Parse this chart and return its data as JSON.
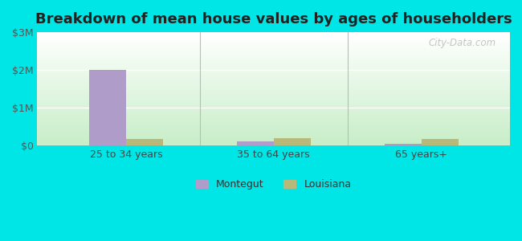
{
  "title": "Breakdown of mean house values by ages of householders",
  "categories": [
    "25 to 34 years",
    "35 to 64 years",
    "65 years+"
  ],
  "montegut_values": [
    2000000,
    100000,
    50000
  ],
  "louisiana_values": [
    175000,
    200000,
    175000
  ],
  "montegut_color": "#b09cc8",
  "louisiana_color": "#b8b87a",
  "ylim": [
    0,
    3000000
  ],
  "yticks": [
    0,
    1000000,
    2000000,
    3000000
  ],
  "ytick_labels": [
    "$0",
    "$1M",
    "$2M",
    "$3M"
  ],
  "outer_background": "#00e5e5",
  "title_fontsize": 13,
  "legend_labels": [
    "Montegut",
    "Louisiana"
  ],
  "bar_width": 0.25,
  "watermark": "City-Data.com"
}
